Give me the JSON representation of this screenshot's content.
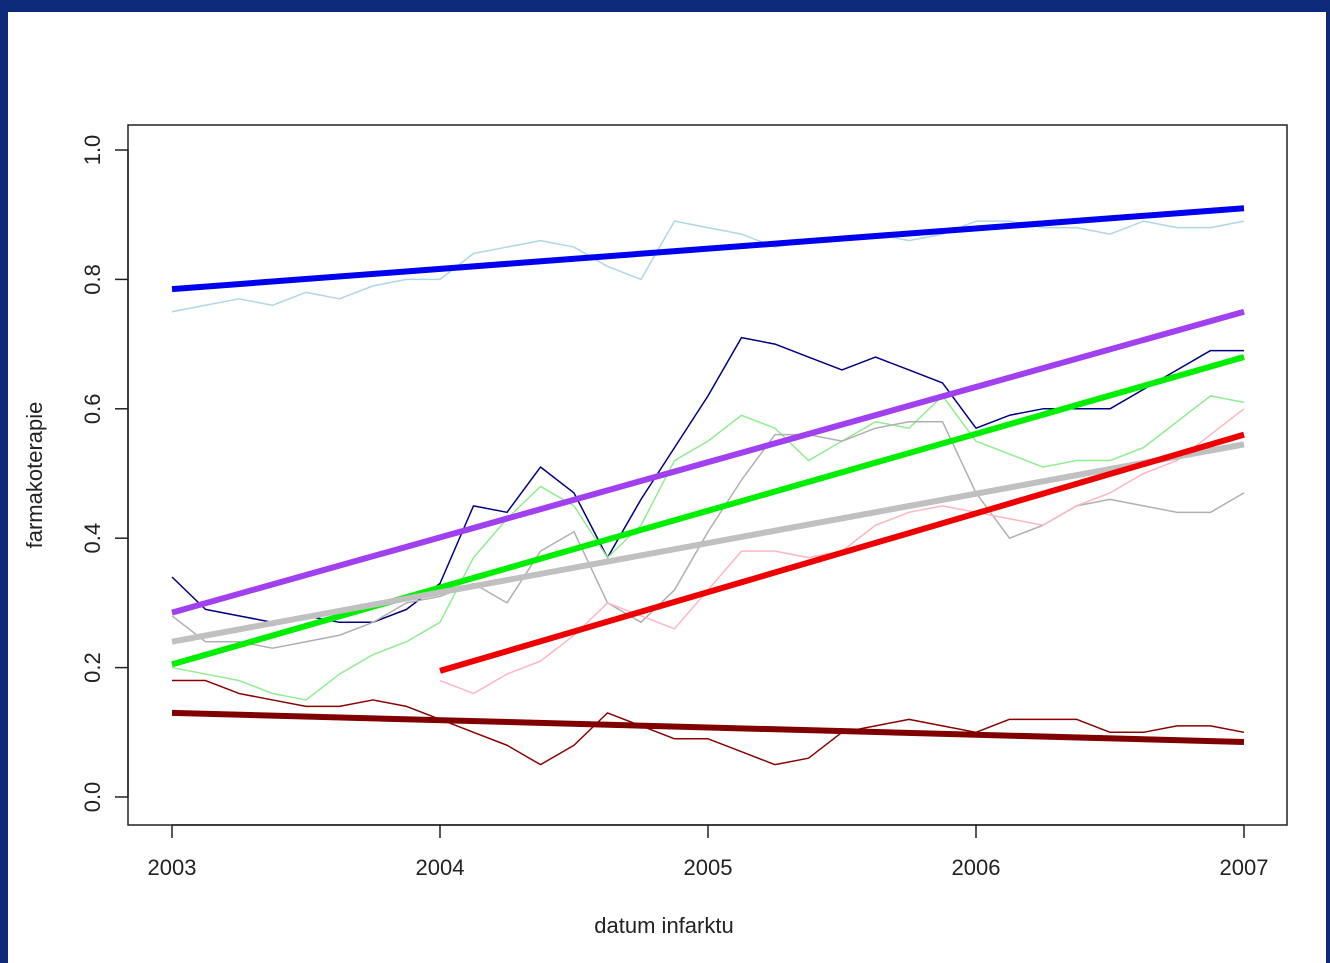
{
  "chart_data": {
    "type": "line",
    "x_label": "datum infarktu",
    "y_label": "farmakoterapie",
    "xlim": [
      2003,
      2007
    ],
    "ylim": [
      0,
      1
    ],
    "xticks": [
      2003,
      2004,
      2005,
      2006,
      2007
    ],
    "yticks": [
      {
        "value": 0,
        "label": "0.0"
      },
      0.2,
      0.4,
      0.6,
      0.8,
      {
        "value": 1,
        "label": "1.0"
      }
    ],
    "series": [
      {
        "color": "#add8e6",
        "width": 1.5,
        "x": [
          2003,
          2003.125,
          2003.25,
          2003.375,
          2003.5,
          2003.625,
          2003.75,
          2003.875,
          2004,
          2004.125,
          2004.25,
          2004.375,
          2004.5,
          2004.625,
          2004.75,
          2004.875,
          2005,
          2005.125,
          2005.25,
          2005.375,
          2005.5,
          2005.625,
          2005.75,
          2005.875,
          2006,
          2006.125,
          2006.25,
          2006.375,
          2006.5,
          2006.625,
          2006.75,
          2006.875,
          2007
        ],
        "values": [
          0.75,
          0.76,
          0.77,
          0.76,
          0.78,
          0.77,
          0.79,
          0.8,
          0.8,
          0.84,
          0.85,
          0.86,
          0.85,
          0.82,
          0.8,
          0.89,
          0.88,
          0.87,
          0.85,
          0.86,
          0.86,
          0.87,
          0.86,
          0.87,
          0.89,
          0.89,
          0.88,
          0.88,
          0.87,
          0.89,
          0.88,
          0.88,
          0.89
        ]
      },
      {
        "color": "#000080",
        "width": 1.5,
        "x": [
          2003,
          2003.125,
          2003.25,
          2003.375,
          2003.5,
          2003.625,
          2003.75,
          2003.875,
          2004,
          2004.125,
          2004.25,
          2004.375,
          2004.5,
          2004.625,
          2004.75,
          2004.875,
          2005,
          2005.125,
          2005.25,
          2005.375,
          2005.5,
          2005.625,
          2005.75,
          2005.875,
          2006,
          2006.125,
          2006.25,
          2006.375,
          2006.5,
          2006.625,
          2006.75,
          2006.875,
          2007
        ],
        "values": [
          0.34,
          0.29,
          0.28,
          0.27,
          0.28,
          0.27,
          0.27,
          0.29,
          0.33,
          0.45,
          0.44,
          0.51,
          0.47,
          0.37,
          0.46,
          0.54,
          0.62,
          0.71,
          0.7,
          0.68,
          0.66,
          0.68,
          0.66,
          0.64,
          0.57,
          0.59,
          0.6,
          0.6,
          0.6,
          0.63,
          0.66,
          0.69,
          0.69
        ]
      },
      {
        "color": "#90ee90",
        "width": 1.5,
        "x": [
          2003,
          2003.125,
          2003.25,
          2003.375,
          2003.5,
          2003.625,
          2003.75,
          2003.875,
          2004,
          2004.125,
          2004.25,
          2004.375,
          2004.5,
          2004.625,
          2004.75,
          2004.875,
          2005,
          2005.125,
          2005.25,
          2005.375,
          2005.5,
          2005.625,
          2005.75,
          2005.875,
          2006,
          2006.125,
          2006.25,
          2006.375,
          2006.5,
          2006.625,
          2006.75,
          2006.875,
          2007
        ],
        "values": [
          0.2,
          0.19,
          0.18,
          0.16,
          0.15,
          0.19,
          0.22,
          0.24,
          0.27,
          0.37,
          0.43,
          0.48,
          0.45,
          0.37,
          0.42,
          0.52,
          0.55,
          0.59,
          0.57,
          0.52,
          0.55,
          0.58,
          0.57,
          0.62,
          0.55,
          0.53,
          0.51,
          0.52,
          0.52,
          0.54,
          0.58,
          0.62,
          0.61
        ]
      },
      {
        "color": "#b0b0b0",
        "width": 1.5,
        "x": [
          2003,
          2003.125,
          2003.25,
          2003.375,
          2003.5,
          2003.625,
          2003.75,
          2003.875,
          2004,
          2004.125,
          2004.25,
          2004.375,
          2004.5,
          2004.625,
          2004.75,
          2004.875,
          2005,
          2005.125,
          2005.25,
          2005.375,
          2005.5,
          2005.625,
          2005.75,
          2005.875,
          2006,
          2006.125,
          2006.25,
          2006.375,
          2006.5,
          2006.625,
          2006.75,
          2006.875,
          2007
        ],
        "values": [
          0.28,
          0.24,
          0.24,
          0.23,
          0.24,
          0.25,
          0.27,
          0.3,
          0.31,
          0.33,
          0.3,
          0.38,
          0.41,
          0.3,
          0.27,
          0.32,
          0.41,
          0.49,
          0.56,
          0.56,
          0.55,
          0.57,
          0.58,
          0.58,
          0.47,
          0.4,
          0.42,
          0.45,
          0.46,
          0.45,
          0.44,
          0.44,
          0.47
        ]
      },
      {
        "color": "#ffb6c1",
        "width": 1.5,
        "x": [
          2004,
          2004.125,
          2004.25,
          2004.375,
          2004.5,
          2004.625,
          2004.75,
          2004.875,
          2005,
          2005.125,
          2005.25,
          2005.375,
          2005.5,
          2005.625,
          2005.75,
          2005.875,
          2006,
          2006.125,
          2006.25,
          2006.375,
          2006.5,
          2006.625,
          2006.75,
          2006.875,
          2007
        ],
        "values": [
          0.18,
          0.16,
          0.19,
          0.21,
          0.25,
          0.3,
          0.28,
          0.26,
          0.32,
          0.38,
          0.38,
          0.37,
          0.38,
          0.42,
          0.44,
          0.45,
          0.44,
          0.43,
          0.42,
          0.45,
          0.47,
          0.5,
          0.52,
          0.56,
          0.6
        ]
      },
      {
        "color": "#8b0000",
        "width": 1.5,
        "x": [
          2003,
          2003.125,
          2003.25,
          2003.375,
          2003.5,
          2003.625,
          2003.75,
          2003.875,
          2004,
          2004.125,
          2004.25,
          2004.375,
          2004.5,
          2004.625,
          2004.75,
          2004.875,
          2005,
          2005.125,
          2005.25,
          2005.375,
          2005.5,
          2005.625,
          2005.75,
          2005.875,
          2006,
          2006.125,
          2006.25,
          2006.375,
          2006.5,
          2006.625,
          2006.75,
          2006.875,
          2007
        ],
        "values": [
          0.18,
          0.18,
          0.16,
          0.15,
          0.14,
          0.14,
          0.15,
          0.14,
          0.12,
          0.1,
          0.08,
          0.05,
          0.08,
          0.13,
          0.11,
          0.09,
          0.09,
          0.07,
          0.05,
          0.06,
          0.1,
          0.11,
          0.12,
          0.11,
          0.1,
          0.12,
          0.12,
          0.12,
          0.1,
          0.1,
          0.11,
          0.11,
          0.1
        ]
      },
      {
        "color": "#0000ee",
        "width": 6,
        "x": [
          2003,
          2007
        ],
        "values": [
          0.785,
          0.91
        ]
      },
      {
        "color": "#a040f0",
        "width": 6,
        "x": [
          2003,
          2007
        ],
        "values": [
          0.285,
          0.75
        ]
      },
      {
        "color": "#00ee00",
        "width": 6,
        "x": [
          2003,
          2007
        ],
        "values": [
          0.205,
          0.68
        ]
      },
      {
        "color": "#c0c0c0",
        "width": 6,
        "x": [
          2003,
          2007
        ],
        "values": [
          0.24,
          0.545
        ]
      },
      {
        "color": "#ee0000",
        "width": 6,
        "x": [
          2004,
          2007
        ],
        "values": [
          0.195,
          0.56
        ]
      },
      {
        "color": "#800000",
        "width": 6,
        "x": [
          2003,
          2007
        ],
        "values": [
          0.13,
          0.085
        ]
      }
    ]
  }
}
